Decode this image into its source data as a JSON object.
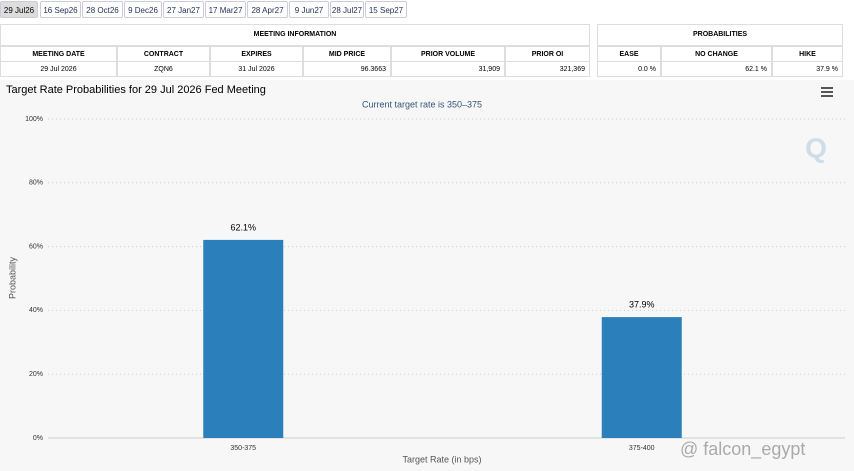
{
  "tabs": [
    "29 Jul26",
    "16 Sep26",
    "28 Oct26",
    "9 Dec26",
    "27 Jan27",
    "17 Mar27",
    "28 Apr27",
    "9 Jun27",
    "28 Jul27",
    "15 Sep27"
  ],
  "meeting_info": {
    "title": "MEETING INFORMATION",
    "headers": [
      "MEETING DATE",
      "CONTRACT",
      "EXPIRES",
      "MID PRICE",
      "PRIOR VOLUME",
      "PRIOR OI"
    ],
    "row": [
      "29 Jul 2026",
      "ZQN6",
      "31 Jul 2026",
      "96.3663",
      "31,909",
      "321,369"
    ]
  },
  "probabilities": {
    "title": "PROBABILITIES",
    "headers": [
      "EASE",
      "NO CHANGE",
      "HIKE"
    ],
    "row": [
      "0.0 %",
      "62.1 %",
      "37.9 %"
    ]
  },
  "chart": {
    "type": "bar",
    "title": "Target Rate Probabilities for 29 Jul 2026 Fed Meeting",
    "subtitle": "Current target rate is 350–375",
    "categories": [
      "350-375",
      "375-400"
    ],
    "values": [
      62.1,
      37.9
    ],
    "value_labels": [
      "62.1%",
      "37.9%"
    ],
    "color": "#2b7fba",
    "ylim": [
      0,
      100
    ],
    "yticks": [
      {
        "value": 0,
        "label": "0%"
      },
      {
        "value": 20,
        "label": "20%"
      },
      {
        "value": 40,
        "label": "40%"
      },
      {
        "value": 60,
        "label": "60%"
      },
      {
        "value": 80,
        "label": "80%"
      },
      {
        "value": 100,
        "label": "100%"
      }
    ],
    "y_label": "Probability",
    "x_label": "Target Rate (in bps)",
    "grid": true
  },
  "watermark": "@ falcon_egypt"
}
